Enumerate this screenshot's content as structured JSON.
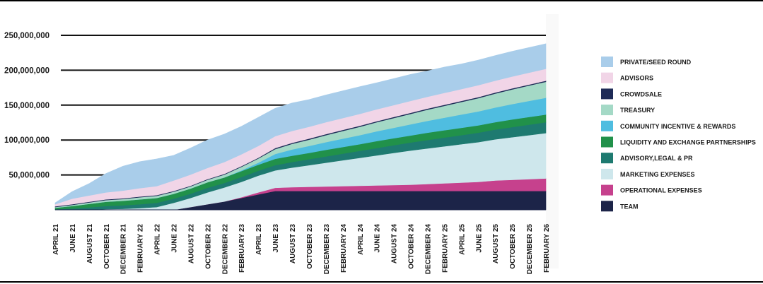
{
  "chart_data": {
    "type": "area",
    "stacked": true,
    "x": [
      "APRIL 21",
      "JUNE 21",
      "AUGUST 21",
      "OCTOBER 21",
      "DECEMBER 21",
      "FEBRUARY 22",
      "APRIL 22",
      "JUNE 22",
      "AUGUST 22",
      "OCTOBER 22",
      "DECEMBER 22",
      "FEBRUARY 23",
      "APRIL 23",
      "JUNE 23",
      "AUGUST 23",
      "OCTOBER 23",
      "DECEMBER 23",
      "FEBRUARY 24",
      "APRIL 24",
      "JUNE 24",
      "AUGUST 24",
      "OCTOBER 24",
      "DECEMBER 24",
      "FEBRUARY 25",
      "APRIL 25",
      "JUNE 25",
      "AUGUST 25",
      "OCTOBER 25",
      "DECEMBER 25",
      "FEBRUARY 26"
    ],
    "yticks": [
      "50,000,000",
      "100,000,000",
      "150,000,000",
      "200,000,000",
      "250,000,000"
    ],
    "ylim": [
      0,
      250000000
    ],
    "grid": "horizontal",
    "legend_position": "right",
    "series": [
      {
        "name": "TEAM",
        "color": "#1c2448",
        "values": [
          0,
          0,
          0,
          0,
          0,
          0,
          0,
          0,
          4000000,
          8000000,
          12000000,
          17000000,
          22000000,
          27000000,
          27000000,
          27000000,
          27000000,
          27000000,
          27000000,
          27000000,
          27000000,
          27000000,
          27000000,
          27000000,
          27000000,
          27000000,
          27000000,
          27000000,
          27000000,
          27000000
        ]
      },
      {
        "name": "OPERATIONAL EXPENSES",
        "color": "#c6418d",
        "values": [
          0,
          0,
          0,
          0,
          0,
          0,
          0,
          0,
          0,
          0,
          0,
          1000000,
          3000000,
          4500000,
          5500000,
          6000000,
          6500000,
          7000000,
          7500000,
          8000000,
          8500000,
          9000000,
          10000000,
          11000000,
          12000000,
          13000000,
          15000000,
          16000000,
          17000000,
          18000000
        ]
      },
      {
        "name": "MARKETING EXPENSES",
        "color": "#cee7ec",
        "values": [
          0,
          0,
          0,
          1000000,
          1500000,
          2500000,
          4000000,
          10000000,
          13000000,
          17000000,
          20000000,
          22000000,
          24000000,
          25000000,
          28000000,
          31000000,
          34000000,
          37000000,
          40000000,
          43000000,
          46000000,
          49000000,
          51000000,
          53000000,
          55000000,
          57000000,
          59000000,
          61000000,
          63000000,
          65000000
        ]
      },
      {
        "name": "ADVISORY,LEGAL & PR",
        "color": "#1e7a70",
        "values": [
          1000000,
          2000000,
          3500000,
          4500000,
          5000000,
          5500000,
          6000000,
          6000000,
          6000000,
          6500000,
          6500000,
          7000000,
          7000000,
          7500000,
          8000000,
          8500000,
          9000000,
          9500000,
          10000000,
          10500000,
          11000000,
          11500000,
          12000000,
          12500000,
          13000000,
          13500000,
          14000000,
          14500000,
          15000000,
          15500000
        ]
      },
      {
        "name": "LIQUIDITY AND EXCHANGE PARTNERSHIPS",
        "color": "#21914a",
        "values": [
          2000000,
          3500000,
          5000000,
          6000000,
          6500000,
          7000000,
          7000000,
          7000000,
          7500000,
          8000000,
          8000000,
          8500000,
          8500000,
          9000000,
          9000000,
          9000000,
          9500000,
          9500000,
          9500000,
          10000000,
          10000000,
          10000000,
          10500000,
          10500000,
          10500000,
          10500000,
          10500000,
          11000000,
          11000000,
          11000000
        ]
      },
      {
        "name": "COMMUNITY INCENTIVE & REWARDS",
        "color": "#4fbde0",
        "values": [
          0,
          0,
          0,
          0,
          0,
          0,
          0,
          0,
          0,
          0,
          0,
          1000000,
          3000000,
          7000000,
          9000000,
          10000000,
          11000000,
          12000000,
          13000000,
          14000000,
          15000000,
          16000000,
          17000000,
          18000000,
          19000000,
          20000000,
          21000000,
          22000000,
          23000000,
          24000000
        ]
      },
      {
        "name": "TREASURY",
        "color": "#a4d9c6",
        "values": [
          1000000,
          1500000,
          2000000,
          2500000,
          2500000,
          3000000,
          3000000,
          3000000,
          3000000,
          3500000,
          4000000,
          5000000,
          6000000,
          7000000,
          8000000,
          9000000,
          10000000,
          11000000,
          12000000,
          13000000,
          14000000,
          15000000,
          16000000,
          17000000,
          18000000,
          19000000,
          20000000,
          21000000,
          22000000,
          23000000
        ]
      },
      {
        "name": "CROWDSALE",
        "color": "#1e2b57",
        "values": [
          1000000,
          1000000,
          1000000,
          1000000,
          1000000,
          1000000,
          1000000,
          1000000,
          1000000,
          1000000,
          1000000,
          1000000,
          1000000,
          1500000,
          1500000,
          1500000,
          1500000,
          1500000,
          1500000,
          1500000,
          1500000,
          1500000,
          1500000,
          1500000,
          1500000,
          1500000,
          1500000,
          1500000,
          1500000,
          1500000
        ]
      },
      {
        "name": "ADVISORS",
        "color": "#f1d5e7",
        "values": [
          3000000,
          8000000,
          9000000,
          10000000,
          11000000,
          12000000,
          13000000,
          15000000,
          16000000,
          16000000,
          17000000,
          17000000,
          17000000,
          17000000,
          17000000,
          17000000,
          17000000,
          17000000,
          17000000,
          17000000,
          17000000,
          17000000,
          17000000,
          17000000,
          17000000,
          17000000,
          17000000,
          17000000,
          17000000,
          17000000
        ]
      },
      {
        "name": "PRIVATE/SEED ROUND",
        "color": "#a9cdea",
        "values": [
          2000000,
          10000000,
          17000000,
          27000000,
          35000000,
          38000000,
          39000000,
          36000000,
          38000000,
          40000000,
          40000000,
          40000000,
          41000000,
          40000000,
          40000000,
          39000000,
          39000000,
          39000000,
          39000000,
          38000000,
          38000000,
          38000000,
          37000000,
          37000000,
          36000000,
          36000000,
          36000000,
          36000000,
          36000000,
          36000000
        ]
      }
    ]
  }
}
